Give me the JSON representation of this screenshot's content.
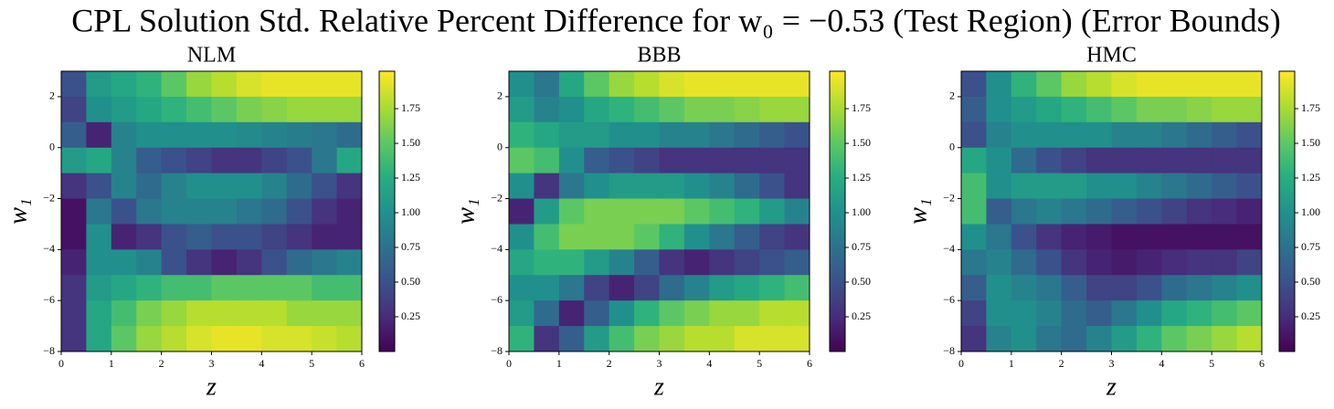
{
  "title": "CPL Solution Std. Relative Percent Difference for w₀ = −0.53 (Test Region) (Error Bounds)",
  "chart_data": [
    {
      "type": "heatmap",
      "title": "NLM",
      "x_label": "z",
      "y_label": "w₁",
      "colormap": "viridis",
      "xlim": [
        0,
        6
      ],
      "ylim": [
        -8,
        3
      ],
      "xticks": [
        0,
        1,
        2,
        3,
        4,
        5,
        6
      ],
      "yticks": [
        -8,
        -6,
        -4,
        -2,
        0,
        2
      ],
      "clim": [
        0,
        2.02
      ],
      "cticks": [
        0.25,
        {
          "value": 0.5,
          "label": "0.50"
        },
        0.75,
        {
          "value": 1.0,
          "label": "1.00"
        },
        1.25,
        {
          "value": 1.5,
          "label": "1.50"
        },
        1.75
      ],
      "x": [
        0.25,
        0.75,
        1.25,
        1.75,
        2.25,
        2.75,
        3.25,
        3.75,
        4.25,
        4.75,
        5.25,
        5.75
      ],
      "y": [
        2.5,
        1.5,
        0.5,
        -0.5,
        -1.5,
        -2.5,
        -3.5,
        -4.5,
        -5.5,
        -6.5,
        -7.5
      ],
      "values": [
        [
          0.5,
          1.1,
          1.2,
          1.3,
          1.5,
          1.7,
          1.8,
          1.9,
          1.95,
          1.95,
          1.95,
          1.95
        ],
        [
          0.4,
          1.0,
          1.1,
          1.2,
          1.3,
          1.4,
          1.5,
          1.6,
          1.65,
          1.7,
          1.7,
          1.7
        ],
        [
          0.6,
          0.2,
          0.9,
          1.0,
          1.0,
          1.0,
          1.0,
          0.95,
          0.9,
          0.85,
          0.8,
          0.7
        ],
        [
          1.1,
          1.2,
          0.9,
          0.6,
          0.5,
          0.4,
          0.3,
          0.3,
          0.4,
          0.5,
          0.8,
          1.2
        ],
        [
          0.3,
          0.5,
          0.9,
          0.7,
          0.9,
          1.0,
          1.0,
          1.0,
          0.9,
          0.7,
          0.5,
          0.3
        ],
        [
          0.1,
          0.8,
          0.5,
          0.8,
          0.9,
          0.9,
          0.9,
          0.8,
          0.7,
          0.5,
          0.3,
          0.2
        ],
        [
          0.1,
          1.0,
          0.2,
          0.3,
          0.5,
          0.6,
          0.5,
          0.5,
          0.4,
          0.3,
          0.2,
          0.2
        ],
        [
          0.2,
          1.0,
          1.0,
          0.9,
          0.5,
          0.3,
          0.2,
          0.3,
          0.5,
          0.7,
          0.8,
          0.9
        ],
        [
          0.3,
          1.1,
          1.2,
          1.3,
          1.4,
          1.4,
          1.5,
          1.5,
          1.5,
          1.5,
          1.4,
          1.4
        ],
        [
          0.3,
          1.2,
          1.4,
          1.6,
          1.7,
          1.8,
          1.8,
          1.8,
          1.8,
          1.7,
          1.7,
          1.7
        ],
        [
          0.3,
          1.2,
          1.5,
          1.7,
          1.8,
          1.9,
          1.95,
          1.95,
          1.9,
          1.9,
          1.85,
          1.8
        ]
      ]
    },
    {
      "type": "heatmap",
      "title": "BBB",
      "x_label": "z",
      "y_label": "w₁",
      "colormap": "viridis",
      "xlim": [
        0,
        6
      ],
      "ylim": [
        -8,
        3
      ],
      "xticks": [
        0,
        1,
        2,
        3,
        4,
        5,
        6
      ],
      "yticks": [
        -8,
        -6,
        -4,
        -2,
        0,
        2
      ],
      "clim": [
        0,
        2.02
      ],
      "cticks": [
        0.25,
        {
          "value": 0.5,
          "label": "0.50"
        },
        0.75,
        {
          "value": 1.0,
          "label": "1.00"
        },
        1.25,
        {
          "value": 1.5,
          "label": "1.50"
        },
        1.75
      ],
      "x": [
        0.25,
        0.75,
        1.25,
        1.75,
        2.25,
        2.75,
        3.25,
        3.75,
        4.25,
        4.75,
        5.25,
        5.75
      ],
      "y": [
        2.5,
        1.5,
        0.5,
        -0.5,
        -1.5,
        -2.5,
        -3.5,
        -4.5,
        -5.5,
        -6.5,
        -7.5
      ],
      "values": [
        [
          1.0,
          0.8,
          1.2,
          1.5,
          1.7,
          1.8,
          1.9,
          1.95,
          1.95,
          1.95,
          1.95,
          1.95
        ],
        [
          1.1,
          0.9,
          1.0,
          1.2,
          1.3,
          1.4,
          1.5,
          1.6,
          1.6,
          1.65,
          1.7,
          1.7
        ],
        [
          1.3,
          1.2,
          1.1,
          1.1,
          1.0,
          1.0,
          0.9,
          0.9,
          0.8,
          0.7,
          0.6,
          0.5
        ],
        [
          1.5,
          1.4,
          1.0,
          0.6,
          0.5,
          0.4,
          0.3,
          0.3,
          0.3,
          0.3,
          0.3,
          0.3
        ],
        [
          1.0,
          0.3,
          0.8,
          1.0,
          1.1,
          1.1,
          1.1,
          1.0,
          0.9,
          0.7,
          0.5,
          0.3
        ],
        [
          0.2,
          1.1,
          1.5,
          1.6,
          1.6,
          1.6,
          1.6,
          1.5,
          1.4,
          1.3,
          1.1,
          0.9
        ],
        [
          1.0,
          1.4,
          1.6,
          1.6,
          1.6,
          1.5,
          1.3,
          1.0,
          0.8,
          0.6,
          0.4,
          0.3
        ],
        [
          1.2,
          1.3,
          1.3,
          1.1,
          0.9,
          0.6,
          0.3,
          0.2,
          0.3,
          0.4,
          0.5,
          0.6
        ],
        [
          1.0,
          1.0,
          0.8,
          0.4,
          0.2,
          0.4,
          0.7,
          0.9,
          1.1,
          1.2,
          1.3,
          1.4
        ],
        [
          1.1,
          0.7,
          0.2,
          0.6,
          1.0,
          1.3,
          1.5,
          1.6,
          1.7,
          1.7,
          1.8,
          1.8
        ],
        [
          1.3,
          0.3,
          0.6,
          1.1,
          1.4,
          1.6,
          1.7,
          1.8,
          1.8,
          1.9,
          1.9,
          1.9
        ]
      ]
    },
    {
      "type": "heatmap",
      "title": "HMC",
      "x_label": "z",
      "y_label": "w₁",
      "colormap": "viridis",
      "xlim": [
        0,
        6
      ],
      "ylim": [
        -8,
        3
      ],
      "xticks": [
        0,
        1,
        2,
        3,
        4,
        5,
        6
      ],
      "yticks": [
        -8,
        -6,
        -4,
        -2,
        0,
        2
      ],
      "clim": [
        0,
        2.02
      ],
      "cticks": [
        0.25,
        {
          "value": 0.5,
          "label": "0.50"
        },
        0.75,
        {
          "value": 1.0,
          "label": "1.00"
        },
        1.25,
        {
          "value": 1.5,
          "label": "1.50"
        },
        1.75
      ],
      "x": [
        0.25,
        0.75,
        1.25,
        1.75,
        2.25,
        2.75,
        3.25,
        3.75,
        4.25,
        4.75,
        5.25,
        5.75
      ],
      "y": [
        2.5,
        1.5,
        0.5,
        -0.5,
        -1.5,
        -2.5,
        -3.5,
        -4.5,
        -5.5,
        -6.5,
        -7.5
      ],
      "values": [
        [
          0.5,
          1.0,
          1.3,
          1.5,
          1.7,
          1.8,
          1.9,
          1.95,
          1.95,
          1.95,
          1.95,
          1.95
        ],
        [
          0.6,
          1.0,
          1.1,
          1.2,
          1.3,
          1.4,
          1.5,
          1.6,
          1.6,
          1.65,
          1.7,
          1.7
        ],
        [
          0.5,
          0.9,
          1.0,
          1.0,
          1.0,
          1.0,
          0.9,
          0.9,
          0.8,
          0.7,
          0.6,
          0.5
        ],
        [
          1.2,
          1.0,
          0.7,
          0.5,
          0.4,
          0.3,
          0.3,
          0.3,
          0.3,
          0.3,
          0.3,
          0.3
        ],
        [
          1.4,
          1.0,
          1.1,
          1.1,
          1.1,
          1.0,
          1.0,
          0.9,
          0.8,
          0.7,
          0.6,
          0.5
        ],
        [
          1.4,
          0.6,
          0.8,
          0.9,
          0.8,
          0.7,
          0.6,
          0.5,
          0.4,
          0.3,
          0.25,
          0.2
        ],
        [
          1.0,
          0.8,
          0.5,
          0.3,
          0.2,
          0.15,
          0.1,
          0.1,
          0.1,
          0.1,
          0.1,
          0.1
        ],
        [
          0.8,
          0.9,
          0.7,
          0.5,
          0.3,
          0.2,
          0.15,
          0.2,
          0.25,
          0.3,
          0.3,
          0.4
        ],
        [
          0.6,
          1.0,
          0.9,
          0.8,
          0.6,
          0.4,
          0.4,
          0.5,
          0.7,
          0.8,
          0.9,
          1.0
        ],
        [
          0.4,
          1.0,
          1.0,
          0.9,
          0.7,
          0.6,
          0.8,
          1.0,
          1.2,
          1.3,
          1.4,
          1.5
        ],
        [
          0.3,
          0.9,
          1.0,
          0.8,
          0.7,
          0.9,
          1.1,
          1.3,
          1.5,
          1.6,
          1.7,
          1.8
        ]
      ]
    }
  ]
}
